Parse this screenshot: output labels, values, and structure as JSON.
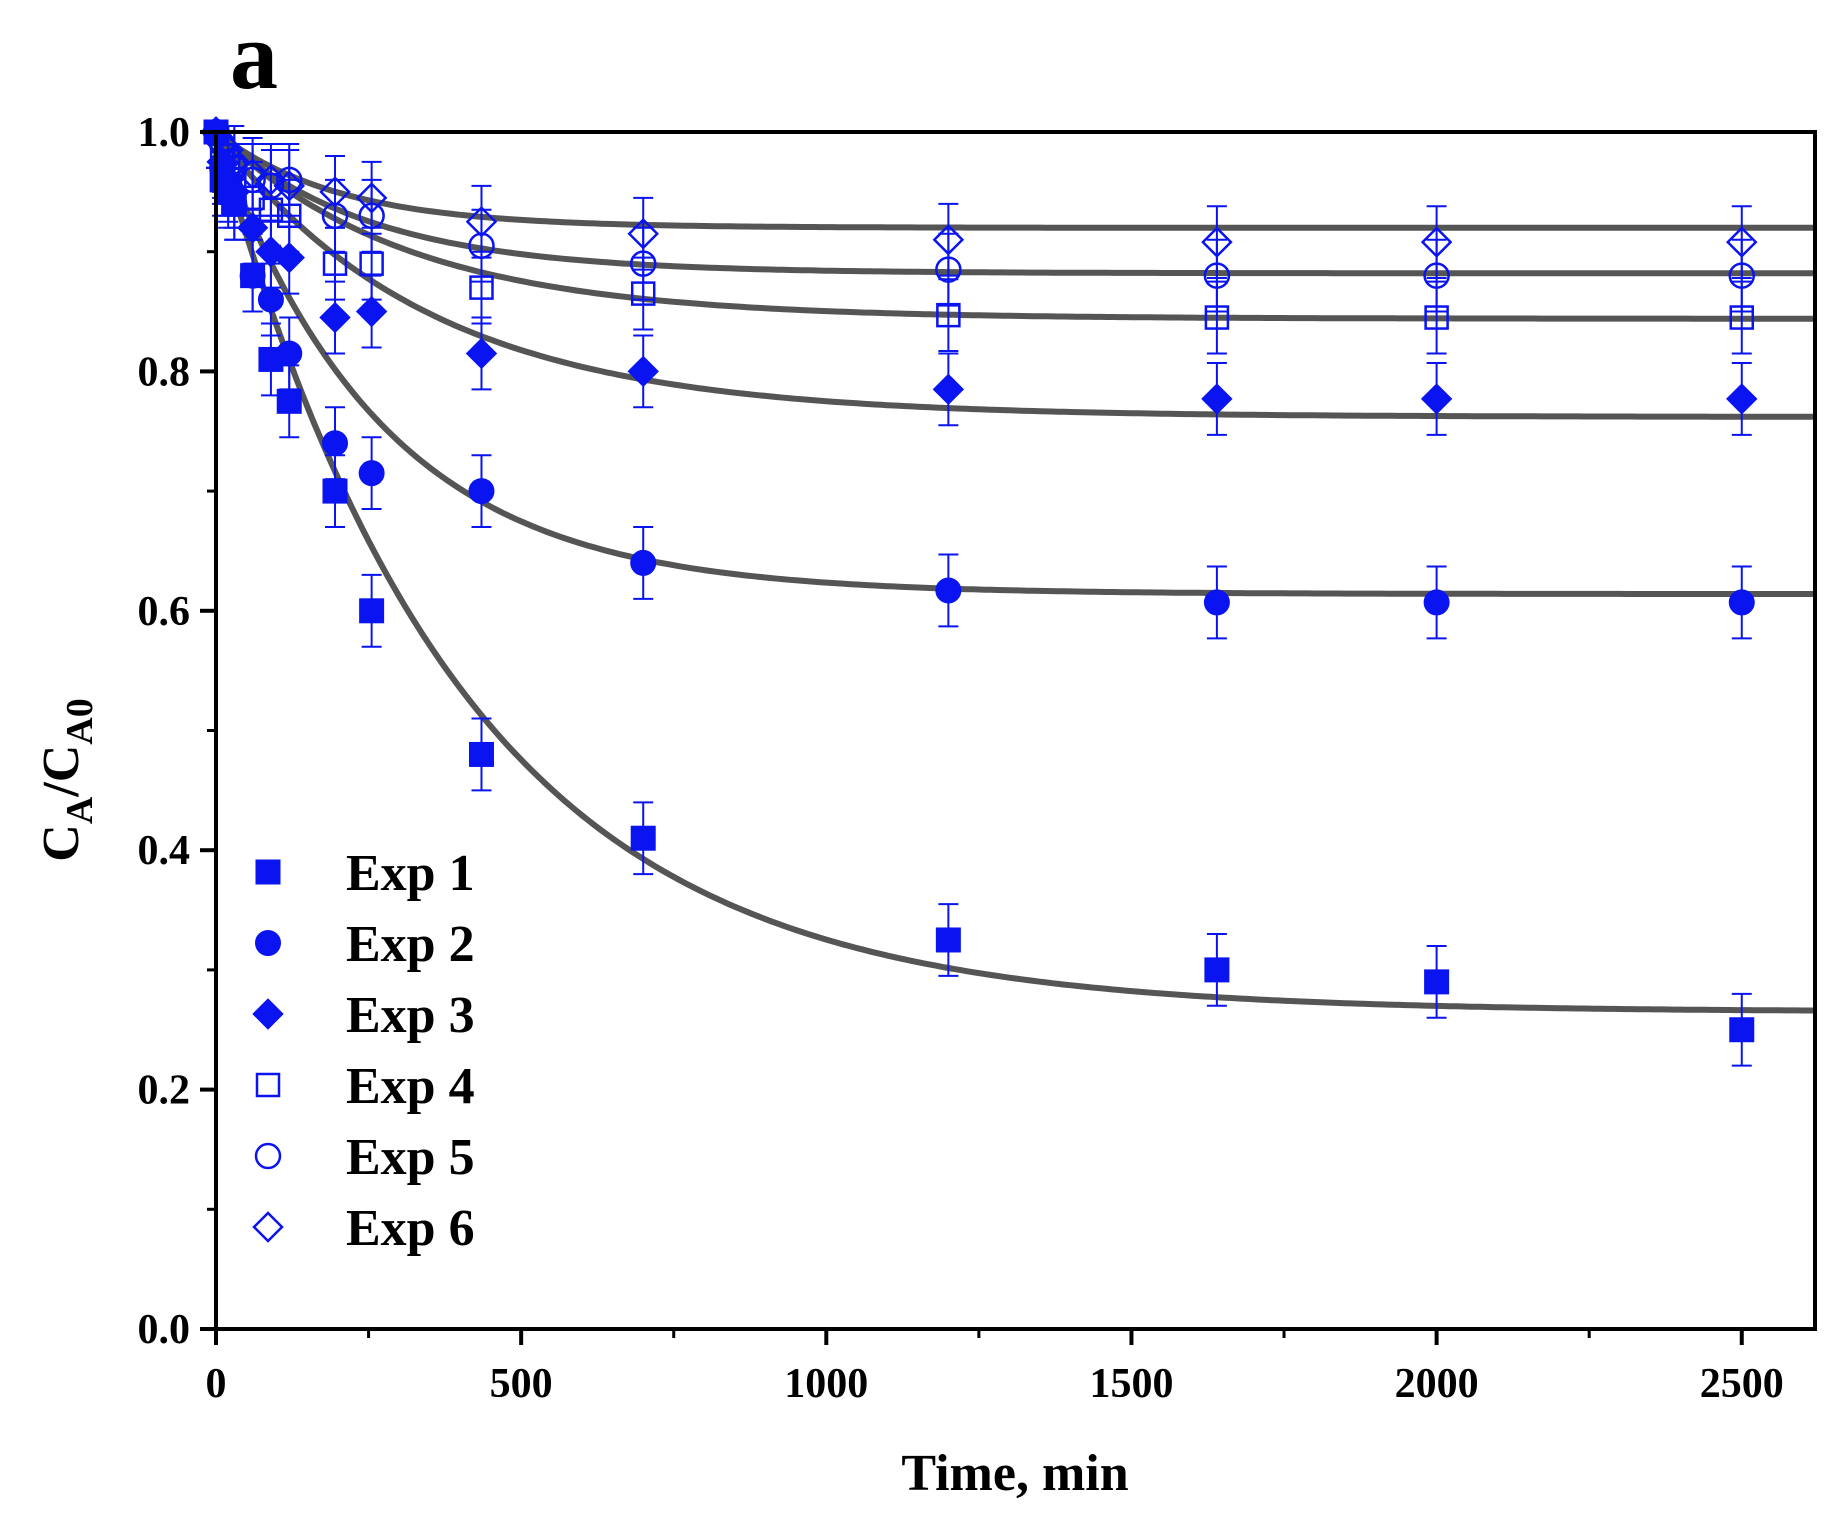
{
  "chart_data": {
    "type": "scatter",
    "panel_label": "a",
    "title": "",
    "xlabel": "Time, min",
    "ylabel": {
      "main": "C",
      "sub1": "A",
      "slash": "/C",
      "sub2": "A0"
    },
    "xlim": [
      0,
      2620
    ],
    "ylim": [
      0,
      1.0
    ],
    "xticks": [
      0,
      500,
      1000,
      1500,
      2000,
      2500
    ],
    "xtick_labels": [
      "0",
      "500",
      "1000",
      "1500",
      "2000",
      "2500"
    ],
    "yticks": [
      0.0,
      0.2,
      0.4,
      0.6,
      0.8,
      1.0
    ],
    "ytick_labels": [
      "0.0",
      "0.2",
      "0.4",
      "0.6",
      "0.8",
      "1.0"
    ],
    "grid": false,
    "legend_position": "bottom-left",
    "error_bar": 0.03,
    "colors": {
      "markers": "#0a14f0",
      "fit_lines": "#555555",
      "axes": "#000000"
    },
    "series": [
      {
        "name": "Exp 1",
        "marker": "square",
        "filled": true,
        "x": [
          0,
          10,
          20,
          30,
          60,
          90,
          120,
          195,
          255,
          435,
          700,
          1200,
          1640,
          2000,
          2500
        ],
        "y": [
          1.0,
          0.96,
          0.95,
          0.94,
          0.88,
          0.81,
          0.775,
          0.7,
          0.6,
          0.48,
          0.41,
          0.325,
          0.3,
          0.29,
          0.25
        ],
        "fit": {
          "plateau": 0.265,
          "k": 0.0025
        }
      },
      {
        "name": "Exp 2",
        "marker": "circle",
        "filled": true,
        "x": [
          0,
          10,
          20,
          30,
          60,
          90,
          120,
          195,
          255,
          435,
          700,
          1200,
          1640,
          2000,
          2500
        ],
        "y": [
          1.0,
          0.97,
          0.955,
          0.94,
          0.88,
          0.86,
          0.815,
          0.74,
          0.715,
          0.7,
          0.64,
          0.617,
          0.607,
          0.607,
          0.607
        ],
        "fit": {
          "plateau": 0.614,
          "k": 0.0037
        }
      },
      {
        "name": "Exp 3",
        "marker": "diamond",
        "filled": true,
        "x": [
          0,
          10,
          20,
          30,
          60,
          90,
          120,
          195,
          255,
          435,
          700,
          1200,
          1640,
          2000,
          2500
        ],
        "y": [
          1.0,
          0.975,
          0.96,
          0.95,
          0.92,
          0.9,
          0.895,
          0.845,
          0.85,
          0.815,
          0.8,
          0.785,
          0.777,
          0.777,
          0.777
        ],
        "fit": {
          "plateau": 0.762,
          "k": 0.0029
        }
      },
      {
        "name": "Exp 4",
        "marker": "square",
        "filled": false,
        "x": [
          0,
          10,
          20,
          30,
          60,
          90,
          120,
          195,
          255,
          435,
          700,
          1200,
          1640,
          2000,
          2500
        ],
        "y": [
          1.0,
          0.98,
          0.97,
          0.96,
          0.945,
          0.935,
          0.93,
          0.89,
          0.89,
          0.87,
          0.865,
          0.847,
          0.845,
          0.845,
          0.845
        ],
        "fit": {
          "plateau": 0.844,
          "k": 0.0032
        }
      },
      {
        "name": "Exp 5",
        "marker": "circle",
        "filled": false,
        "x": [
          0,
          10,
          20,
          30,
          60,
          90,
          120,
          195,
          255,
          435,
          700,
          1200,
          1640,
          2000,
          2500
        ],
        "y": [
          1.0,
          0.99,
          0.98,
          0.97,
          0.96,
          0.955,
          0.96,
          0.93,
          0.93,
          0.905,
          0.89,
          0.885,
          0.88,
          0.88,
          0.88
        ],
        "fit": {
          "plateau": 0.882,
          "k": 0.004
        }
      },
      {
        "name": "Exp 6",
        "marker": "diamond",
        "filled": false,
        "x": [
          0,
          10,
          20,
          30,
          60,
          90,
          120,
          195,
          255,
          435,
          700,
          1200,
          1640,
          2000,
          2500
        ],
        "y": [
          1.0,
          0.99,
          0.985,
          0.975,
          0.965,
          0.96,
          0.955,
          0.95,
          0.945,
          0.925,
          0.915,
          0.91,
          0.908,
          0.908,
          0.908
        ],
        "fit": {
          "plateau": 0.92,
          "k": 0.005
        }
      }
    ]
  }
}
